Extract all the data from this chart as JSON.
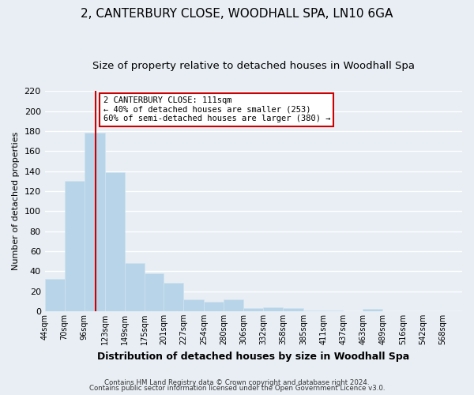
{
  "title": "2, CANTERBURY CLOSE, WOODHALL SPA, LN10 6GA",
  "subtitle": "Size of property relative to detached houses in Woodhall Spa",
  "xlabel": "Distribution of detached houses by size in Woodhall Spa",
  "ylabel": "Number of detached properties",
  "bar_values": [
    32,
    130,
    178,
    139,
    48,
    38,
    28,
    12,
    9,
    12,
    3,
    4,
    3,
    1,
    1,
    0,
    2,
    0,
    0,
    0,
    0
  ],
  "bin_labels": [
    "44sqm",
    "70sqm",
    "96sqm",
    "123sqm",
    "149sqm",
    "175sqm",
    "201sqm",
    "227sqm",
    "254sqm",
    "280sqm",
    "306sqm",
    "332sqm",
    "358sqm",
    "385sqm",
    "411sqm",
    "437sqm",
    "463sqm",
    "489sqm",
    "516sqm",
    "542sqm",
    "568sqm"
  ],
  "bar_edges": [
    44,
    70,
    96,
    123,
    149,
    175,
    201,
    227,
    254,
    280,
    306,
    332,
    358,
    385,
    411,
    437,
    463,
    489,
    516,
    542,
    568,
    594
  ],
  "bar_color": "#b8d4e8",
  "bar_edge_color": "#d0e4f0",
  "vline_x": 111,
  "vline_color": "#cc0000",
  "ylim": [
    0,
    220
  ],
  "yticks": [
    0,
    20,
    40,
    60,
    80,
    100,
    120,
    140,
    160,
    180,
    200,
    220
  ],
  "annotation_title": "2 CANTERBURY CLOSE: 111sqm",
  "annotation_line1": "← 40% of detached houses are smaller (253)",
  "annotation_line2": "60% of semi-detached houses are larger (380) →",
  "annotation_box_color": "#ffffff",
  "annotation_box_edge": "#cc0000",
  "footer_line1": "Contains HM Land Registry data © Crown copyright and database right 2024.",
  "footer_line2": "Contains public sector information licensed under the Open Government Licence v3.0.",
  "background_color": "#e8eef4",
  "grid_color": "#ffffff",
  "title_fontsize": 11,
  "subtitle_fontsize": 9.5
}
